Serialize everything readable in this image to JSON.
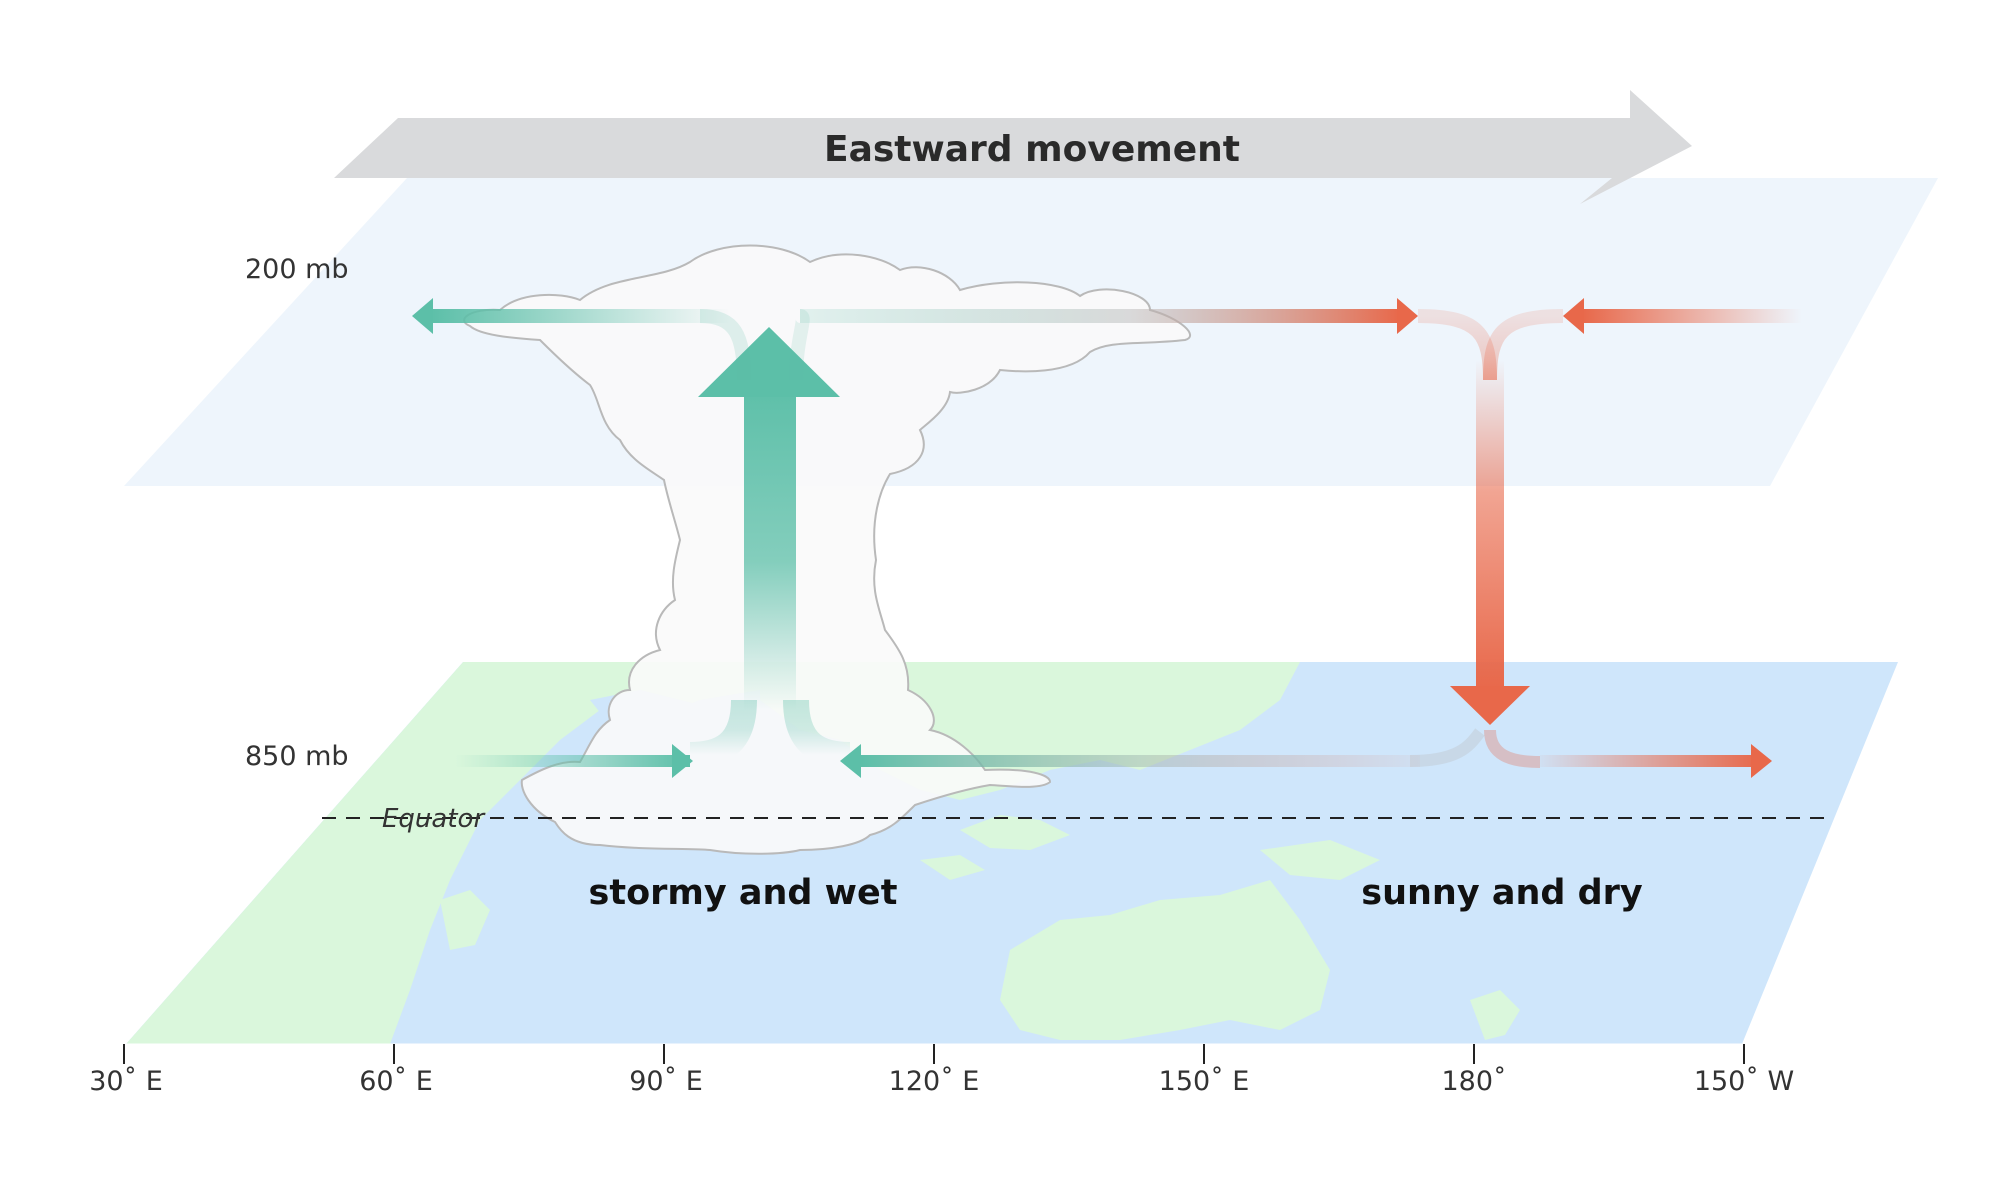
{
  "banner": {
    "label": "Eastward movement"
  },
  "levels": {
    "upper": "200 mb",
    "lower": "850 mb"
  },
  "equator": {
    "label": "Equator"
  },
  "regions": {
    "left": "stormy and wet",
    "right": "sunny and dry"
  },
  "longitude_ticks": [
    "30˚ E",
    "60˚ E",
    "90˚ E",
    "120˚ E",
    "150˚ E",
    "180˚",
    "150˚ W"
  ],
  "colors": {
    "convective_arrow": "#5cbfa8",
    "subsidence_arrow": "#e8684a",
    "banner": "#d9dadc",
    "ocean": "#cfe6fb",
    "land": "#daf7dc",
    "upper_plane": "#eef5fc"
  }
}
